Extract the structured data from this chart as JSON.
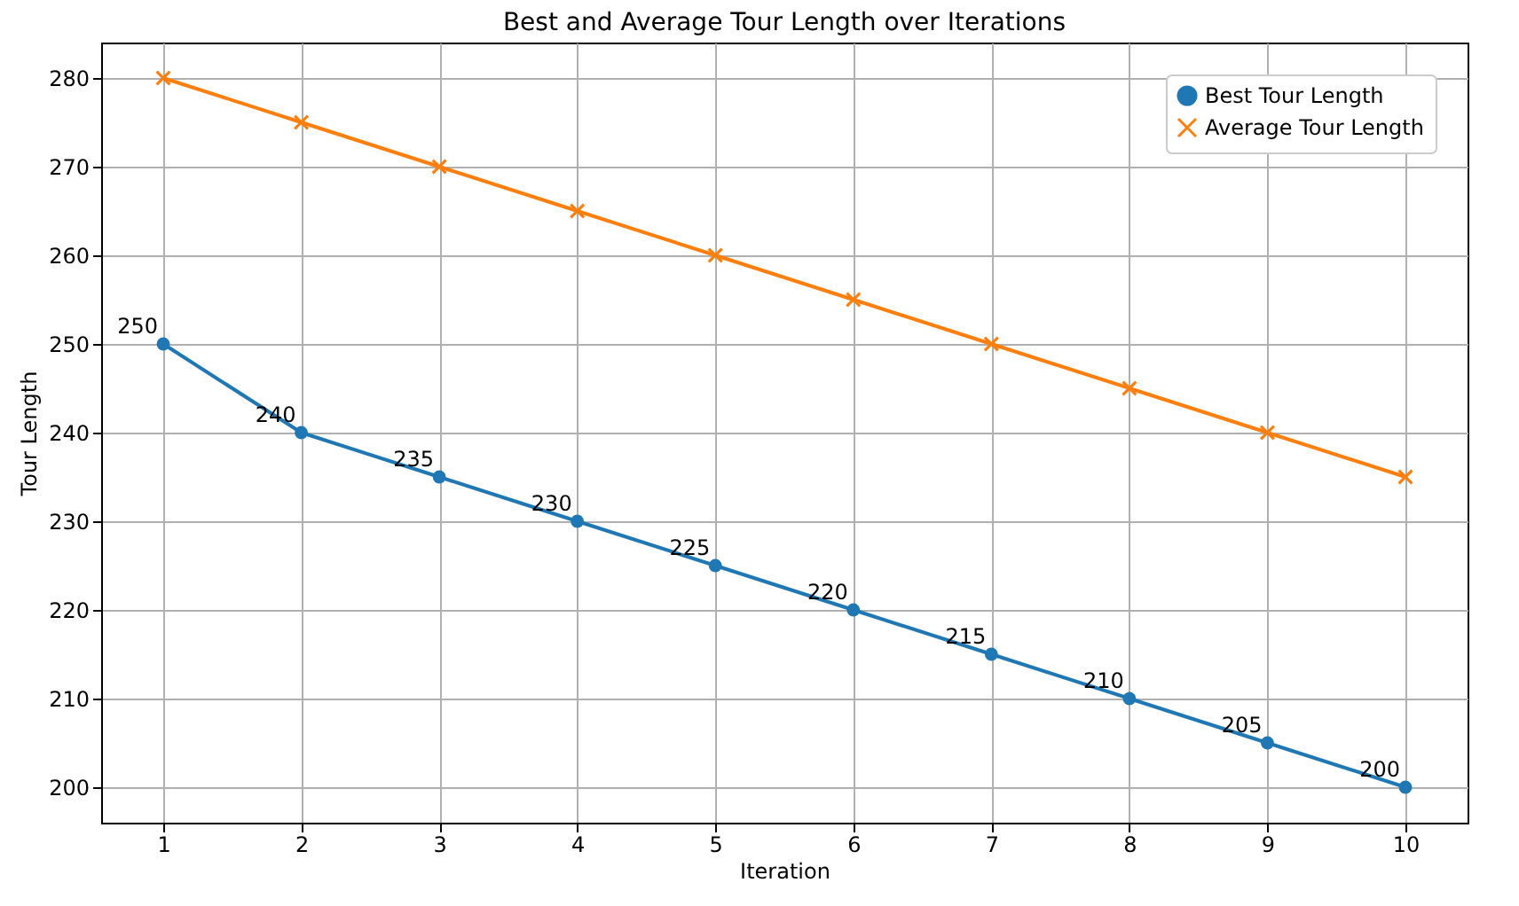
{
  "chart_data": {
    "type": "line",
    "title": "Best and Average Tour Length over Iterations",
    "xlabel": "Iteration",
    "ylabel": "Tour Length",
    "x": [
      1,
      2,
      3,
      4,
      5,
      6,
      7,
      8,
      9,
      10
    ],
    "xlim": [
      0.55,
      10.45
    ],
    "xticks": [
      1,
      2,
      3,
      4,
      5,
      6,
      7,
      8,
      9,
      10
    ],
    "ylim": [
      196,
      284
    ],
    "yticks": [
      200,
      210,
      220,
      230,
      240,
      250,
      260,
      270,
      280
    ],
    "grid": true,
    "legend": "top right",
    "series": [
      {
        "name": "Best Tour Length",
        "color": "#1f77b4",
        "marker": "circle",
        "values": [
          250,
          240,
          235,
          230,
          225,
          220,
          215,
          210,
          205,
          200
        ],
        "value_labels": [
          "250",
          "240",
          "235",
          "230",
          "225",
          "220",
          "215",
          "210",
          "205",
          "200"
        ]
      },
      {
        "name": "Average Tour Length",
        "color": "#ff7f0e",
        "marker": "cross",
        "values": [
          280,
          275,
          270,
          265,
          260,
          255,
          250,
          245,
          240,
          235
        ]
      }
    ]
  }
}
